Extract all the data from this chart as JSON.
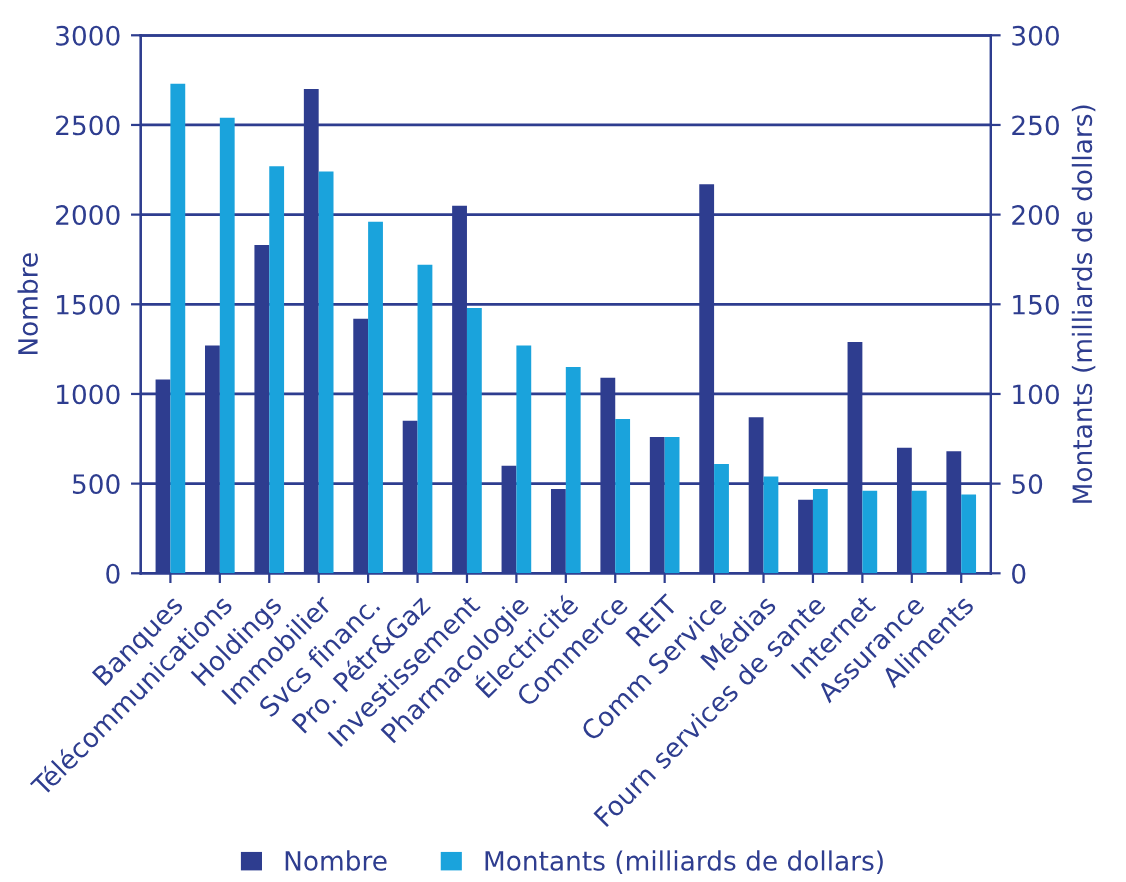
{
  "chart_data": {
    "type": "bar",
    "ylabel": "Nombre",
    "y2label": "Montants (milliards de dollars)",
    "categories": [
      "Banques",
      "Télécommunications",
      "Holdings",
      "Immobilier",
      "Svcs financ.",
      "Pro. Pétr&Gaz",
      "Investissement",
      "Pharmacologie",
      "Électricité",
      "Commerce",
      "REIT",
      "Comm Service",
      "Médias",
      "Fourn services de sante",
      "Internet",
      "Assurance",
      "Aliments"
    ],
    "series": [
      {
        "name": "Nombre",
        "color": "#2e3d8f",
        "values": [
          1080,
          1270,
          1830,
          2700,
          1420,
          850,
          2050,
          600,
          470,
          1090,
          760,
          2170,
          870,
          410,
          1290,
          700,
          680
        ]
      },
      {
        "name": "Montants (milliards de dollars)",
        "color": "#1aa3dc",
        "axis": "y2",
        "values": [
          273,
          254,
          227,
          224,
          196,
          172,
          148,
          127,
          115,
          86,
          76,
          61,
          54,
          47,
          46,
          46,
          44
        ]
      }
    ],
    "ylim": [
      0,
      3000
    ],
    "yticks": [
      0,
      500,
      1000,
      1500,
      2000,
      2500,
      3000
    ],
    "y2lim": [
      0,
      300
    ],
    "y2ticks": [
      0,
      50,
      100,
      150,
      200,
      250,
      300
    ],
    "grid": "y",
    "legend": "bottom"
  }
}
